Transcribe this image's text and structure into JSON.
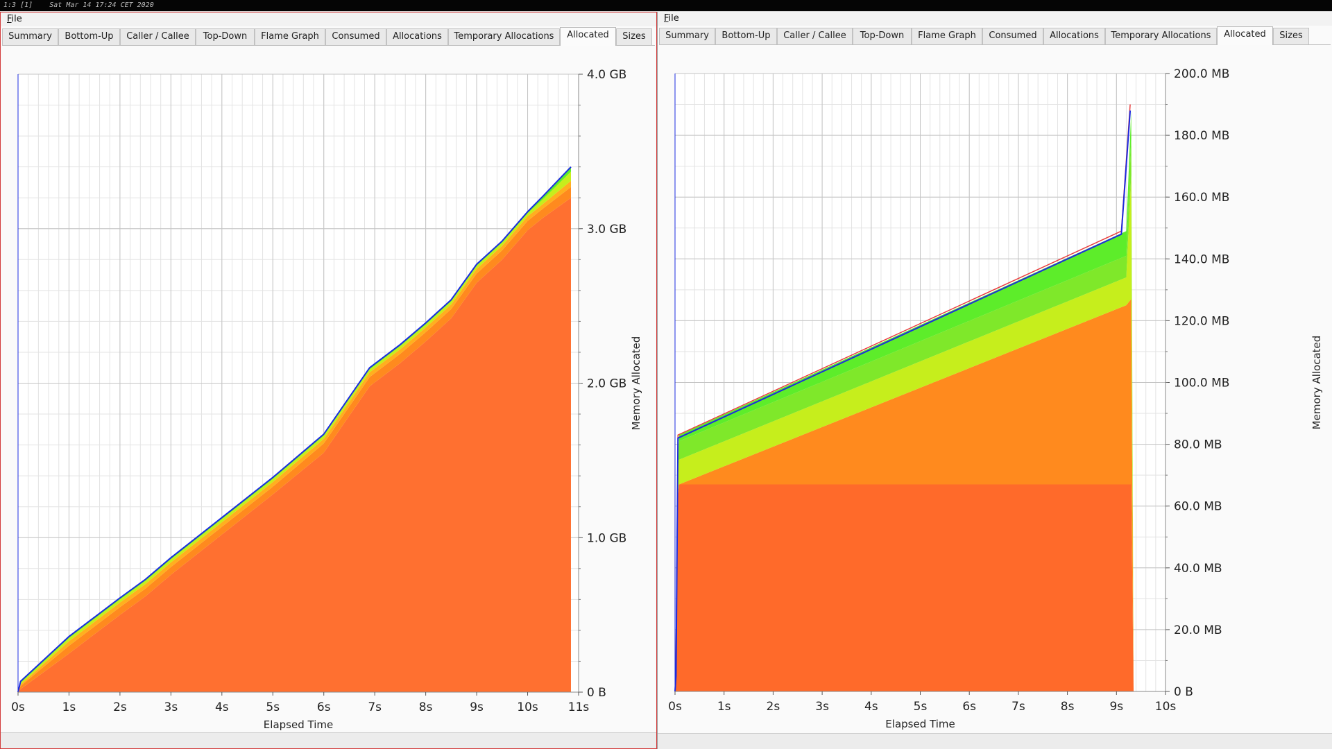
{
  "topbar": {
    "text": "1:3 [1]    Sat Mar 14 17:24 CET 2020"
  },
  "windows": [
    {
      "menu_file": "File",
      "tabs": [
        "Summary",
        "Bottom-Up",
        "Caller / Callee",
        "Top-Down",
        "Flame Graph",
        "Consumed",
        "Allocations",
        "Temporary Allocations",
        "Allocated",
        "Sizes"
      ],
      "active_tab": "Allocated"
    },
    {
      "menu_file": "File",
      "tabs": [
        "Summary",
        "Bottom-Up",
        "Caller / Callee",
        "Top-Down",
        "Flame Graph",
        "Consumed",
        "Allocations",
        "Temporary Allocations",
        "Allocated",
        "Sizes"
      ],
      "active_tab": "Allocated"
    }
  ],
  "colors": {
    "orange_red": "#ff7030",
    "orange": "#ff8a1e",
    "yellow_green": "#c6ee1c",
    "green": "#5ded2a",
    "blue": "#1b2be0",
    "red": "#e84040"
  },
  "chart_data": [
    {
      "type": "area",
      "xlabel": "Elapsed Time",
      "ylabel": "Memory Allocated",
      "x_unit": "s",
      "y_unit": "GB",
      "x_ticks": [
        "0s",
        "1s",
        "2s",
        "3s",
        "4s",
        "5s",
        "6s",
        "7s",
        "8s",
        "9s",
        "10s",
        "11s"
      ],
      "y_ticks": [
        "0 B",
        "1.0 GB",
        "2.0 GB",
        "3.0 GB",
        "4.0 GB"
      ],
      "xlim": [
        0,
        11
      ],
      "ylim": [
        0,
        4
      ],
      "grid": true,
      "stacked": true,
      "x": [
        0,
        0.05,
        1,
        2,
        2.5,
        3,
        4,
        5,
        6,
        6.9,
        7.5,
        8,
        8.5,
        9,
        9.5,
        10,
        10.3,
        10.85
      ],
      "series": [
        {
          "color": "#ff7030",
          "values": [
            0,
            0.02,
            0.25,
            0.5,
            0.62,
            0.76,
            1.02,
            1.28,
            1.55,
            1.98,
            2.13,
            2.27,
            2.42,
            2.65,
            2.8,
            2.99,
            3.07,
            3.2
          ]
        },
        {
          "color": "#ff8a1e",
          "values": [
            0,
            0.02,
            0.05,
            0.05,
            0.05,
            0.05,
            0.05,
            0.05,
            0.06,
            0.06,
            0.06,
            0.06,
            0.06,
            0.06,
            0.06,
            0.06,
            0.06,
            0.07
          ]
        },
        {
          "color": "#ffb01e",
          "values": [
            0,
            0.01,
            0.03,
            0.03,
            0.03,
            0.03,
            0.03,
            0.03,
            0.03,
            0.03,
            0.03,
            0.03,
            0.03,
            0.03,
            0.03,
            0.03,
            0.03,
            0.04
          ]
        },
        {
          "color": "#c6ee1c",
          "values": [
            0,
            0.01,
            0.02,
            0.02,
            0.02,
            0.02,
            0.02,
            0.02,
            0.02,
            0.02,
            0.02,
            0.02,
            0.02,
            0.02,
            0.02,
            0.02,
            0.03,
            0.06
          ]
        },
        {
          "color": "#5ded2a",
          "values": [
            0,
            0.01,
            0.01,
            0.01,
            0.01,
            0.01,
            0.01,
            0.01,
            0.01,
            0.01,
            0.01,
            0.01,
            0.01,
            0.01,
            0.01,
            0.01,
            0.02,
            0.03
          ]
        }
      ],
      "outline_color": "#1b2be0"
    },
    {
      "type": "area",
      "xlabel": "Elapsed Time",
      "ylabel": "Memory Allocated",
      "x_unit": "s",
      "y_unit": "MB",
      "x_ticks": [
        "0s",
        "1s",
        "2s",
        "3s",
        "4s",
        "5s",
        "6s",
        "7s",
        "8s",
        "9s",
        "10s"
      ],
      "y_ticks": [
        "0 B",
        "20.0 MB",
        "40.0 MB",
        "60.0 MB",
        "80.0 MB",
        "100.0 MB",
        "120.0 MB",
        "140.0 MB",
        "160.0 MB",
        "180.0 MB",
        "200.0 MB"
      ],
      "xlim": [
        0,
        10
      ],
      "ylim": [
        0,
        200
      ],
      "grid": true,
      "stacked": true,
      "x": [
        0,
        0.04,
        0.08,
        9.2,
        9.3,
        9.35
      ],
      "series": [
        {
          "color": "#ff6a2a",
          "values": [
            0,
            60,
            67,
            67,
            67,
            0
          ]
        },
        {
          "color": "#ff8a1e",
          "values": [
            0,
            0,
            0,
            58,
            60,
            0
          ]
        },
        {
          "color": "#c6ee1c",
          "values": [
            0,
            0,
            8,
            9,
            40,
            0
          ]
        },
        {
          "color": "#7fe82a",
          "values": [
            0,
            0,
            6,
            7,
            12,
            0
          ]
        },
        {
          "color": "#5ded2a",
          "values": [
            0,
            0,
            2,
            8,
            9,
            0
          ]
        }
      ],
      "outline_color": "#1b2be0",
      "outline_x": [
        0,
        0.02,
        0.06,
        9.1,
        9.28
      ],
      "outline_values": [
        0,
        5,
        82,
        148,
        188
      ],
      "red_outline_x": [
        0.02,
        0.06,
        9.1,
        9.28
      ],
      "red_outline_values": [
        6,
        83,
        149,
        190
      ]
    }
  ]
}
